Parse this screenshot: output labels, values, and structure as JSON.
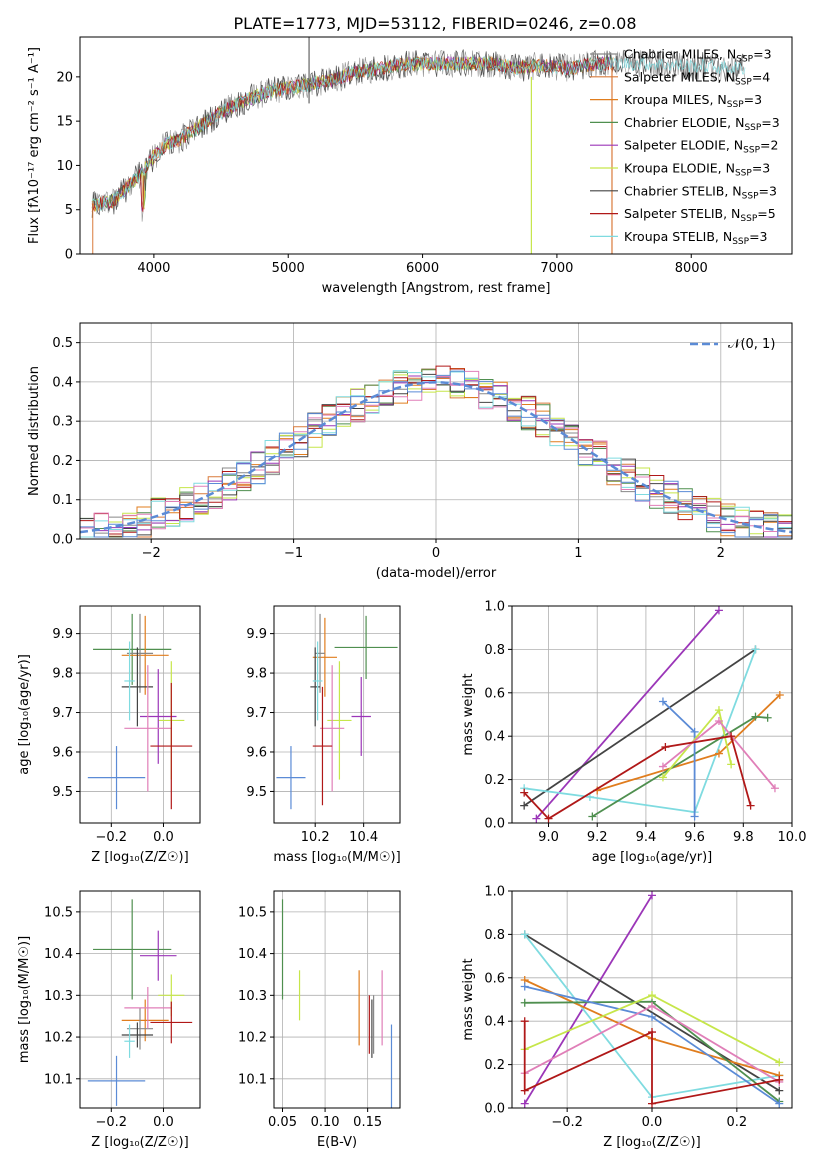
{
  "title": "PLATE=1773, MJD=53112, FIBERID=0246, z=0.08",
  "colors": {
    "Chabrier MILES": "#888888",
    "Salpeter MILES": "#d97a3a",
    "Kroupa MILES": "#e07d1e",
    "Chabrier ELODIE": "#4f8f4f",
    "Salpeter ELODIE": "#9b36b8",
    "Kroupa ELODIE": "#c6e64a",
    "Chabrier STELIB": "#444444",
    "Salpeter STELIB": "#b01818",
    "Kroupa STELIB": "#7fdbe0",
    "pink": "#e07fb8",
    "blue": "#5b8bd6",
    "gaussian": "#5b8bd6"
  },
  "chart_data": [
    {
      "id": "spectrum",
      "type": "line",
      "xlabel": "wavelength [Angstrom, rest frame]",
      "ylabel": "Flux [fλ10⁻¹⁷ erg cm⁻² s⁻¹ A⁻¹]",
      "xlim": [
        3450,
        8750
      ],
      "ylim": [
        0,
        24.5
      ],
      "xticks": [
        4000,
        5000,
        6000,
        7000,
        8000
      ],
      "yticks": [
        0,
        5,
        10,
        15,
        20
      ],
      "grid": false,
      "legend": [
        {
          "label": "Chabrier MILES, N_SSP=3",
          "color": "#888888"
        },
        {
          "label": "Salpeter MILES, N_SSP=4",
          "color": "#d97a3a"
        },
        {
          "label": "Kroupa MILES, N_SSP=3",
          "color": "#e07d1e"
        },
        {
          "label": "Chabrier ELODIE, N_SSP=3",
          "color": "#4f8f4f"
        },
        {
          "label": "Salpeter ELODIE, N_SSP=2",
          "color": "#9b36b8"
        },
        {
          "label": "Kroupa ELODIE, N_SSP=3",
          "color": "#c6e64a"
        },
        {
          "label": "Chabrier STELIB, N_SSP=3",
          "color": "#444444"
        },
        {
          "label": "Salpeter STELIB, N_SSP=5",
          "color": "#b01818"
        },
        {
          "label": "Kroupa STELIB, N_SSP=3",
          "color": "#7fdbe0"
        }
      ],
      "continuum": [
        [
          3550,
          5.5
        ],
        [
          3700,
          6
        ],
        [
          3800,
          7.5
        ],
        [
          3900,
          9
        ],
        [
          4000,
          11
        ],
        [
          4100,
          12.5
        ],
        [
          4200,
          13
        ],
        [
          4300,
          14
        ],
        [
          4500,
          16
        ],
        [
          4700,
          17.5
        ],
        [
          4900,
          18.5
        ],
        [
          5100,
          19
        ],
        [
          5300,
          19.5
        ],
        [
          5500,
          20.5
        ],
        [
          5700,
          21
        ],
        [
          5900,
          21.5
        ],
        [
          6100,
          21.5
        ],
        [
          6300,
          21.5
        ],
        [
          6500,
          21.5
        ],
        [
          6700,
          21
        ],
        [
          6900,
          21.3
        ],
        [
          7100,
          21
        ],
        [
          7300,
          21.5
        ],
        [
          7500,
          21.5
        ],
        [
          7700,
          21.5
        ],
        [
          7900,
          21.3
        ],
        [
          8100,
          21.2
        ],
        [
          8300,
          21
        ]
      ]
    },
    {
      "id": "residuals",
      "type": "line",
      "xlabel": "(data-model)/error",
      "ylabel": "Normed distribution",
      "xlim": [
        -2.5,
        2.5
      ],
      "ylim": [
        0,
        0.55
      ],
      "xticks": [
        -2,
        -1,
        0,
        1,
        2
      ],
      "yticks": [
        0.0,
        0.1,
        0.2,
        0.3,
        0.4,
        0.5
      ],
      "grid": true,
      "legend": [
        {
          "label": "𝒩(0, 1)",
          "color": "#5b8bd6"
        }
      ],
      "bin_width": 0.1
    },
    {
      "id": "z_vs_age",
      "type": "scatter",
      "xlabel": "Z [log₁₀(Z/Z☉)]",
      "ylabel": "age  [log₁₀(age/yr)]",
      "xlim": [
        -0.32,
        0.14
      ],
      "ylim": [
        9.42,
        9.97
      ],
      "xticks": [
        -0.2,
        0.0
      ],
      "yticks": [
        9.5,
        9.6,
        9.7,
        9.8,
        9.9
      ],
      "grid": true,
      "points": [
        {
          "c": "#4f8f4f",
          "x": -0.12,
          "xe": 0.15,
          "y": 9.86,
          "ye": 0.09
        },
        {
          "c": "#e07d1e",
          "x": -0.07,
          "xe": 0.09,
          "y": 9.845,
          "ye": 0.1
        },
        {
          "c": "#888888",
          "x": -0.09,
          "xe": 0.05,
          "y": 9.85,
          "ye": 0.1
        },
        {
          "c": "#444444",
          "x": -0.1,
          "xe": 0.06,
          "y": 9.765,
          "ye": 0.1
        },
        {
          "c": "#c6e64a",
          "x": 0.03,
          "xe": 0.05,
          "y": 9.68,
          "ye": 0.15
        },
        {
          "c": "#9b36b8",
          "x": -0.02,
          "xe": 0.07,
          "y": 9.69,
          "ye": 0.12
        },
        {
          "c": "#e07fb8",
          "x": -0.06,
          "xe": 0.09,
          "y": 9.66,
          "ye": 0.16
        },
        {
          "c": "#b01818",
          "x": 0.03,
          "xe": 0.08,
          "y": 9.615,
          "ye": 0.16
        },
        {
          "c": "#5b8bd6",
          "x": -0.18,
          "xe": 0.11,
          "y": 9.535,
          "ye": 0.08
        },
        {
          "c": "#7fdbe0",
          "x": -0.13,
          "xe": 0.02,
          "y": 9.78,
          "ye": 0.1
        }
      ]
    },
    {
      "id": "mass_vs_age",
      "type": "scatter",
      "xlabel": "mass [log₁₀(M/M☉)]",
      "ylabel": "",
      "xlim": [
        10.03,
        10.55
      ],
      "ylim": [
        9.42,
        9.97
      ],
      "xticks": [
        10.2,
        10.4
      ],
      "yticks": [
        9.5,
        9.6,
        9.7,
        9.8,
        9.9
      ],
      "grid": true,
      "points": [
        {
          "c": "#4f8f4f",
          "x": 10.41,
          "xe": 0.13,
          "y": 9.865,
          "ye": 0.08
        },
        {
          "c": "#e07d1e",
          "x": 10.24,
          "xe": 0.05,
          "y": 9.84,
          "ye": 0.1
        },
        {
          "c": "#888888",
          "x": 10.22,
          "xe": 0.02,
          "y": 9.85,
          "ye": 0.1
        },
        {
          "c": "#444444",
          "x": 10.2,
          "xe": 0.02,
          "y": 9.765,
          "ye": 0.1
        },
        {
          "c": "#c6e64a",
          "x": 10.3,
          "xe": 0.05,
          "y": 9.68,
          "ye": 0.15
        },
        {
          "c": "#9b36b8",
          "x": 10.39,
          "xe": 0.04,
          "y": 9.69,
          "ye": 0.1
        },
        {
          "c": "#e07fb8",
          "x": 10.27,
          "xe": 0.05,
          "y": 9.66,
          "ye": 0.16
        },
        {
          "c": "#b01818",
          "x": 10.23,
          "xe": 0.04,
          "y": 9.615,
          "ye": 0.15
        },
        {
          "c": "#5b8bd6",
          "x": 10.1,
          "xe": 0.06,
          "y": 9.535,
          "ye": 0.08
        },
        {
          "c": "#7fdbe0",
          "x": 10.21,
          "xe": 0.02,
          "y": 9.78,
          "ye": 0.1
        }
      ]
    },
    {
      "id": "age_vs_massweight",
      "type": "line",
      "xlabel": "age  [log₁₀(age/yr)]",
      "ylabel": "mass weight",
      "xlim": [
        8.85,
        10.0
      ],
      "ylim": [
        0,
        1.0
      ],
      "xticks": [
        9.0,
        9.2,
        9.4,
        9.6,
        9.8,
        10.0
      ],
      "yticks": [
        0.0,
        0.2,
        0.4,
        0.6,
        0.8,
        1.0
      ],
      "grid": true,
      "series": [
        {
          "c": "#9b36b8",
          "x": [
            8.95,
            9.7
          ],
          "y": [
            0.02,
            0.98
          ]
        },
        {
          "c": "#444444",
          "x": [
            8.9,
            9.85
          ],
          "y": [
            0.08,
            0.8
          ]
        },
        {
          "c": "#7fdbe0",
          "x": [
            8.9,
            9.17,
            9.6,
            9.85
          ],
          "y": [
            0.16,
            0.12,
            0.05,
            0.8
          ]
        },
        {
          "c": "#e07d1e",
          "x": [
            9.2,
            9.7,
            9.95
          ],
          "y": [
            0.15,
            0.32,
            0.59
          ]
        },
        {
          "c": "#4f8f4f",
          "x": [
            9.18,
            9.85,
            9.9
          ],
          "y": [
            0.03,
            0.49,
            0.485
          ]
        },
        {
          "c": "#5b8bd6",
          "x": [
            9.47,
            9.6,
            9.6
          ],
          "y": [
            0.56,
            0.42,
            0.03
          ]
        },
        {
          "c": "#c6e64a",
          "x": [
            9.47,
            9.7,
            9.75
          ],
          "y": [
            0.21,
            0.52,
            0.27
          ]
        },
        {
          "c": "#e07fb8",
          "x": [
            9.47,
            9.7,
            9.93
          ],
          "y": [
            0.26,
            0.47,
            0.16
          ]
        },
        {
          "c": "#b01818",
          "x": [
            8.9,
            9.0,
            9.48,
            9.75,
            9.83
          ],
          "y": [
            0.14,
            0.02,
            0.35,
            0.4,
            0.08
          ]
        }
      ]
    },
    {
      "id": "z_vs_mass",
      "type": "scatter",
      "xlabel": "Z [log₁₀(Z/Z☉)]",
      "ylabel": "mass [log₁₀(M/M☉)]",
      "xlim": [
        -0.32,
        0.14
      ],
      "ylim": [
        10.03,
        10.55
      ],
      "xticks": [
        -0.2,
        0.0
      ],
      "yticks": [
        10.1,
        10.2,
        10.3,
        10.4,
        10.5
      ],
      "grid": true,
      "points": [
        {
          "c": "#4f8f4f",
          "x": -0.12,
          "xe": 0.15,
          "y": 10.41,
          "ye": 0.12
        },
        {
          "c": "#e07d1e",
          "x": -0.07,
          "xe": 0.09,
          "y": 10.24,
          "ye": 0.05
        },
        {
          "c": "#888888",
          "x": -0.09,
          "xe": 0.05,
          "y": 10.22,
          "ye": 0.05
        },
        {
          "c": "#444444",
          "x": -0.1,
          "xe": 0.06,
          "y": 10.205,
          "ye": 0.03
        },
        {
          "c": "#c6e64a",
          "x": 0.03,
          "xe": 0.05,
          "y": 10.3,
          "ye": 0.05
        },
        {
          "c": "#9b36b8",
          "x": -0.02,
          "xe": 0.07,
          "y": 10.395,
          "ye": 0.06
        },
        {
          "c": "#e07fb8",
          "x": -0.06,
          "xe": 0.09,
          "y": 10.27,
          "ye": 0.05
        },
        {
          "c": "#b01818",
          "x": 0.03,
          "xe": 0.08,
          "y": 10.235,
          "ye": 0.05
        },
        {
          "c": "#5b8bd6",
          "x": -0.18,
          "xe": 0.11,
          "y": 10.095,
          "ye": 0.06
        },
        {
          "c": "#7fdbe0",
          "x": -0.13,
          "xe": 0.02,
          "y": 10.19,
          "ye": 0.04
        }
      ]
    },
    {
      "id": "ebv_vs_mass",
      "type": "scatter",
      "xlabel": "E(B-V)",
      "ylabel": "",
      "xlim": [
        0.04,
        0.188
      ],
      "ylim": [
        10.03,
        10.55
      ],
      "xticks": [
        0.05,
        0.1,
        0.15
      ],
      "yticks": [
        10.1,
        10.2,
        10.3,
        10.4,
        10.5
      ],
      "grid": true,
      "points": [
        {
          "c": "#4f8f4f",
          "x": 0.05,
          "xe": 0,
          "y": 10.41,
          "ye": 0.12
        },
        {
          "c": "#c6e64a",
          "x": 0.07,
          "xe": 0,
          "y": 10.3,
          "ye": 0.06
        },
        {
          "c": "#e07d1e",
          "x": 0.14,
          "xe": 0,
          "y": 10.27,
          "ye": 0.09
        },
        {
          "c": "#b01818",
          "x": 0.152,
          "xe": 0,
          "y": 10.23,
          "ye": 0.07
        },
        {
          "c": "#444444",
          "x": 0.155,
          "xe": 0,
          "y": 10.22,
          "ye": 0.07
        },
        {
          "c": "#888888",
          "x": 0.157,
          "xe": 0,
          "y": 10.23,
          "ye": 0.07
        },
        {
          "c": "#e07fb8",
          "x": 0.167,
          "xe": 0,
          "y": 10.27,
          "ye": 0.09
        },
        {
          "c": "#5b8bd6",
          "x": 0.178,
          "xe": 0,
          "y": 10.1,
          "ye": 0.13
        }
      ]
    },
    {
      "id": "z_vs_massweight",
      "type": "line",
      "xlabel": "Z [log₁₀(Z/Z☉)]",
      "ylabel": "mass weight",
      "xlim": [
        -0.33,
        0.33
      ],
      "ylim": [
        0,
        1.0
      ],
      "xticks": [
        -0.2,
        0.0,
        0.2
      ],
      "yticks": [
        0.0,
        0.2,
        0.4,
        0.6,
        0.8,
        1.0
      ],
      "grid": true,
      "series": [
        {
          "c": "#9b36b8",
          "x": [
            -0.3,
            0.0
          ],
          "y": [
            0.02,
            0.98
          ]
        },
        {
          "c": "#444444",
          "x": [
            -0.3,
            0.3
          ],
          "y": [
            0.8,
            0.08
          ]
        },
        {
          "c": "#7fdbe0",
          "x": [
            -0.3,
            0.0,
            0.3
          ],
          "y": [
            0.8,
            0.05,
            0.15
          ]
        },
        {
          "c": "#e07d1e",
          "x": [
            -0.3,
            0.0,
            0.3
          ],
          "y": [
            0.59,
            0.32,
            0.15
          ]
        },
        {
          "c": "#4f8f4f",
          "x": [
            -0.3,
            0.0,
            0.3
          ],
          "y": [
            0.485,
            0.49,
            0.03
          ]
        },
        {
          "c": "#5b8bd6",
          "x": [
            -0.3,
            0.0,
            0.3
          ],
          "y": [
            0.56,
            0.42,
            0.02
          ]
        },
        {
          "c": "#c6e64a",
          "x": [
            -0.3,
            0.0,
            0.3
          ],
          "y": [
            0.27,
            0.52,
            0.21
          ]
        },
        {
          "c": "#e07fb8",
          "x": [
            -0.3,
            0.0,
            0.3
          ],
          "y": [
            0.16,
            0.47,
            0.12
          ]
        },
        {
          "c": "#b01818",
          "x": [
            -0.3,
            -0.3,
            0.0,
            0.0,
            0.3
          ],
          "y": [
            0.4,
            0.08,
            0.35,
            0.02,
            0.13
          ]
        }
      ]
    }
  ]
}
